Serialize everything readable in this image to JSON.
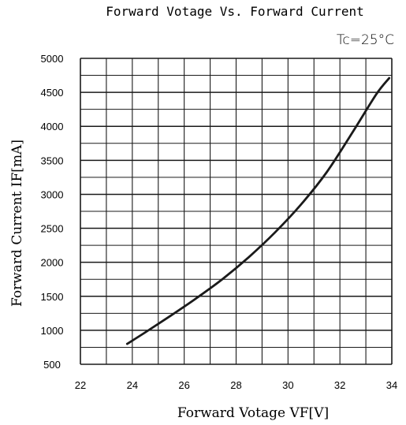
{
  "chart_data": {
    "type": "line",
    "title": "Forward Votage Vs. Forward Current",
    "condition": "Tc=25°C",
    "xlabel": "Forward Votage",
    "xlabel_symbol": "VF[V]",
    "ylabel": "Forward Current",
    "ylabel_symbol": "IF[mA]",
    "xlim": [
      22,
      34
    ],
    "ylim": [
      500,
      5000
    ],
    "x_ticks": [
      "22",
      "24",
      "26",
      "28",
      "30",
      "32",
      "34"
    ],
    "y_ticks": [
      "500",
      "1000",
      "1500",
      "2000",
      "2500",
      "3000",
      "3500",
      "4000",
      "4500",
      "5000"
    ],
    "grid": true,
    "series": [
      {
        "x": [
          23.8,
          24.5,
          25.5,
          26.5,
          27.5,
          28.5,
          29.5,
          30.5,
          31.5,
          32.5,
          33.4,
          33.9
        ],
        "y": [
          800,
          970,
          1220,
          1480,
          1760,
          2080,
          2440,
          2850,
          3330,
          3920,
          4470,
          4710
        ]
      }
    ]
  }
}
